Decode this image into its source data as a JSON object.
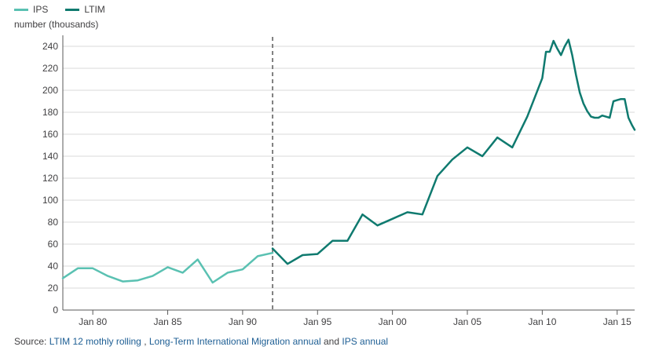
{
  "legend": {
    "ips_label": "IPS",
    "ltim_label": "LTIM"
  },
  "colors": {
    "ips": "#5ac1b2",
    "ltim": "#0f7a6f",
    "divider": "#808080",
    "grid": "#d9d9d9",
    "axis": "#5a5a5a",
    "link": "#206095"
  },
  "source": {
    "prefix": "Source: ",
    "link1": "LTIM 12 mothly rolling",
    "sep1": " , ",
    "link2": "Long-Term International Migration annual",
    "sep2": " and ",
    "link3": "IPS annual"
  },
  "chart_data": {
    "type": "line",
    "title": "",
    "ylabel": "number (thousands)",
    "xlabel": "",
    "ylim": [
      0,
      250
    ],
    "yticks": [
      0,
      20,
      40,
      60,
      80,
      100,
      120,
      140,
      160,
      180,
      200,
      220,
      240
    ],
    "xlim": [
      "1978-01",
      "2016-03"
    ],
    "xticks": [
      {
        "date": "1980-01",
        "label": "Jan 80"
      },
      {
        "date": "1985-01",
        "label": "Jan 85"
      },
      {
        "date": "1990-01",
        "label": "Jan 90"
      },
      {
        "date": "1995-01",
        "label": "Jan 95"
      },
      {
        "date": "2000-01",
        "label": "Jan 00"
      },
      {
        "date": "2005-01",
        "label": "Jan 05"
      },
      {
        "date": "2010-01",
        "label": "Jan 10"
      },
      {
        "date": "2015-01",
        "label": "Jan 15"
      }
    ],
    "divider_date": "1992-01",
    "grid": true,
    "legend_position": "top-left",
    "series": [
      {
        "name": "IPS",
        "points": [
          [
            "1978-01",
            29
          ],
          [
            "1979-01",
            38
          ],
          [
            "1980-01",
            38
          ],
          [
            "1981-01",
            31
          ],
          [
            "1982-01",
            26
          ],
          [
            "1983-01",
            27
          ],
          [
            "1984-01",
            31
          ],
          [
            "1985-01",
            39
          ],
          [
            "1986-01",
            34
          ],
          [
            "1987-01",
            46
          ],
          [
            "1988-01",
            25
          ],
          [
            "1989-01",
            34
          ],
          [
            "1990-01",
            37
          ],
          [
            "1991-01",
            49
          ],
          [
            "1992-01",
            52
          ]
        ]
      },
      {
        "name": "LTIM",
        "points": [
          [
            "1992-01",
            56
          ],
          [
            "1993-01",
            42
          ],
          [
            "1994-01",
            50
          ],
          [
            "1995-01",
            51
          ],
          [
            "1996-01",
            63
          ],
          [
            "1997-01",
            63
          ],
          [
            "1998-01",
            87
          ],
          [
            "1999-01",
            77
          ],
          [
            "2000-01",
            83
          ],
          [
            "2001-01",
            89
          ],
          [
            "2002-01",
            87
          ],
          [
            "2003-01",
            122
          ],
          [
            "2004-01",
            137
          ],
          [
            "2005-01",
            148
          ],
          [
            "2006-01",
            140
          ],
          [
            "2007-01",
            157
          ],
          [
            "2008-01",
            148
          ],
          [
            "2009-01",
            176
          ],
          [
            "2010-01",
            211
          ],
          [
            "2010-04",
            235
          ],
          [
            "2010-07",
            235
          ],
          [
            "2010-10",
            245
          ],
          [
            "2011-01",
            238
          ],
          [
            "2011-04",
            232
          ],
          [
            "2011-07",
            240
          ],
          [
            "2011-10",
            246
          ],
          [
            "2012-01",
            232
          ],
          [
            "2012-04",
            214
          ],
          [
            "2012-07",
            198
          ],
          [
            "2012-10",
            188
          ],
          [
            "2013-01",
            181
          ],
          [
            "2013-04",
            176
          ],
          [
            "2013-07",
            175
          ],
          [
            "2013-10",
            175
          ],
          [
            "2014-01",
            177
          ],
          [
            "2014-04",
            176
          ],
          [
            "2014-07",
            175
          ],
          [
            "2014-10",
            190
          ],
          [
            "2015-01",
            191
          ],
          [
            "2015-04",
            192
          ],
          [
            "2015-07",
            192
          ],
          [
            "2015-10",
            175
          ],
          [
            "2016-01",
            168
          ],
          [
            "2016-03",
            164
          ]
        ]
      }
    ]
  }
}
